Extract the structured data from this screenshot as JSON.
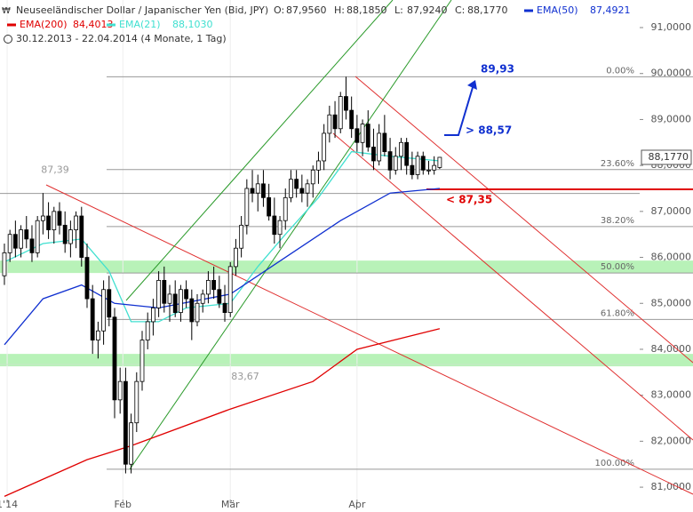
{
  "chart_data": {
    "type": "candlestick",
    "title": "Neuseeländischer Dollar / Japanischer Yen (Bid, JPY)",
    "ohlc": [
      {
        "label": "O:",
        "value": "87,9560"
      },
      {
        "label": "H:",
        "value": "88,1850"
      },
      {
        "label": "L:",
        "value": "87,9240"
      },
      {
        "label": "C:",
        "value": "88,1770"
      }
    ],
    "subtitle": "30.12.2013 - 22.04.2014 (4 Monate, 1 Tag)",
    "ylim": [
      80.46,
      91.6
    ],
    "yticks": [
      {
        "value": 81,
        "label": "81,0000"
      },
      {
        "value": 82,
        "label": "82,0000"
      },
      {
        "value": 83,
        "label": "83,0000"
      },
      {
        "value": 84,
        "label": "84,0000"
      },
      {
        "value": 85,
        "label": "85,0000"
      },
      {
        "value": 86,
        "label": "86,0000"
      },
      {
        "value": 87,
        "label": "87,0000"
      },
      {
        "value": 88,
        "label": "88,0000"
      },
      {
        "value": 89,
        "label": "89,0000"
      },
      {
        "value": 90,
        "label": "90,0000"
      },
      {
        "value": 91,
        "label": "91,0000"
      }
    ],
    "xlim": [
      -0.8,
      115.3
    ],
    "xticks": [
      {
        "value": 0.5,
        "label": "1'14"
      },
      {
        "value": 21.5,
        "label": "Feb"
      },
      {
        "value": 41,
        "label": "Mär"
      },
      {
        "value": 64,
        "label": "Apr"
      }
    ],
    "last_price": {
      "value": 88.177,
      "label": "88,1770"
    },
    "candles": [
      [
        85.6,
        86.3,
        85.4,
        86.1
      ],
      [
        86.1,
        86.6,
        85.9,
        86.5
      ],
      [
        86.5,
        86.8,
        86.0,
        86.2
      ],
      [
        86.2,
        86.7,
        86.0,
        86.6
      ],
      [
        86.6,
        86.9,
        86.2,
        86.4
      ],
      [
        86.4,
        86.7,
        85.9,
        86.1
      ],
      [
        86.1,
        86.9,
        86.0,
        86.8
      ],
      [
        86.8,
        87.4,
        86.5,
        86.9
      ],
      [
        86.9,
        87.2,
        86.4,
        86.6
      ],
      [
        86.6,
        87.1,
        86.3,
        87.0
      ],
      [
        87.0,
        87.2,
        86.5,
        86.7
      ],
      [
        86.7,
        87.0,
        86.1,
        86.3
      ],
      [
        86.3,
        86.8,
        86.0,
        86.6
      ],
      [
        86.6,
        87.0,
        86.2,
        86.9
      ],
      [
        86.9,
        87.1,
        85.8,
        86.0
      ],
      [
        86.0,
        86.3,
        84.9,
        85.1
      ],
      [
        85.1,
        85.4,
        83.9,
        84.2
      ],
      [
        84.2,
        84.6,
        83.8,
        84.4
      ],
      [
        84.4,
        85.5,
        84.1,
        85.3
      ],
      [
        85.3,
        85.6,
        84.5,
        84.7
      ],
      [
        84.7,
        84.9,
        82.5,
        82.9
      ],
      [
        82.9,
        83.6,
        82.6,
        83.3
      ],
      [
        83.3,
        83.6,
        81.3,
        81.5
      ],
      [
        81.5,
        82.6,
        81.3,
        82.4
      ],
      [
        82.4,
        83.5,
        82.2,
        83.3
      ],
      [
        83.3,
        84.4,
        83.1,
        84.2
      ],
      [
        84.2,
        84.8,
        84.0,
        84.6
      ],
      [
        84.6,
        85.1,
        84.3,
        84.9
      ],
      [
        84.9,
        85.7,
        84.7,
        85.5
      ],
      [
        85.5,
        85.8,
        84.8,
        85.0
      ],
      [
        85.0,
        85.4,
        84.6,
        85.2
      ],
      [
        85.2,
        85.5,
        84.7,
        84.8
      ],
      [
        84.8,
        85.4,
        84.6,
        85.3
      ],
      [
        85.3,
        85.5,
        84.9,
        85.1
      ],
      [
        85.1,
        85.3,
        84.2,
        84.6
      ],
      [
        84.6,
        85.2,
        84.5,
        85.0
      ],
      [
        85.0,
        85.3,
        84.8,
        85.2
      ],
      [
        85.2,
        85.7,
        85.0,
        85.5
      ],
      [
        85.5,
        85.8,
        85.1,
        85.3
      ],
      [
        85.3,
        85.6,
        84.9,
        85.0
      ],
      [
        85.0,
        85.4,
        84.6,
        84.8
      ],
      [
        84.8,
        85.9,
        84.7,
        85.8
      ],
      [
        85.8,
        86.4,
        85.6,
        86.2
      ],
      [
        86.2,
        86.9,
        86.0,
        86.7
      ],
      [
        86.7,
        87.7,
        86.5,
        87.5
      ],
      [
        87.5,
        87.9,
        87.2,
        87.4
      ],
      [
        87.4,
        87.8,
        87.0,
        87.6
      ],
      [
        87.6,
        87.9,
        87.1,
        87.3
      ],
      [
        87.3,
        87.6,
        86.8,
        86.9
      ],
      [
        86.9,
        87.3,
        86.3,
        86.5
      ],
      [
        86.5,
        86.9,
        86.2,
        86.8
      ],
      [
        86.8,
        87.5,
        86.6,
        87.3
      ],
      [
        87.3,
        87.9,
        87.2,
        87.7
      ],
      [
        87.7,
        87.9,
        87.3,
        87.5
      ],
      [
        87.5,
        87.8,
        87.2,
        87.4
      ],
      [
        87.4,
        87.7,
        87.1,
        87.6
      ],
      [
        87.6,
        88.0,
        87.3,
        87.9
      ],
      [
        87.9,
        88.3,
        87.6,
        88.1
      ],
      [
        88.1,
        88.9,
        87.9,
        88.7
      ],
      [
        88.7,
        89.3,
        88.5,
        89.1
      ],
      [
        89.1,
        89.4,
        88.6,
        88.8
      ],
      [
        88.8,
        89.6,
        88.7,
        89.5
      ],
      [
        89.5,
        89.93,
        89.0,
        89.2
      ],
      [
        89.2,
        89.5,
        88.6,
        88.8
      ],
      [
        88.8,
        89.1,
        88.3,
        88.5
      ],
      [
        88.5,
        89.0,
        88.2,
        88.9
      ],
      [
        88.9,
        89.2,
        88.3,
        88.4
      ],
      [
        88.4,
        88.8,
        87.9,
        88.1
      ],
      [
        88.1,
        88.9,
        88.0,
        88.7
      ],
      [
        88.7,
        89.1,
        88.2,
        88.3
      ],
      [
        88.3,
        88.6,
        87.7,
        87.9
      ],
      [
        87.9,
        88.4,
        87.8,
        88.2
      ],
      [
        88.2,
        88.6,
        87.9,
        88.5
      ],
      [
        88.5,
        88.6,
        87.8,
        88.0
      ],
      [
        88.0,
        88.3,
        87.7,
        87.8
      ],
      [
        87.8,
        88.3,
        87.7,
        88.2
      ],
      [
        88.2,
        88.3,
        87.8,
        87.9
      ],
      [
        87.9,
        88.1,
        87.8,
        87.9
      ],
      [
        87.9,
        88.2,
        87.8,
        88.0
      ],
      [
        87.956,
        88.185,
        87.924,
        88.177
      ]
    ],
    "series": [
      {
        "name": "EMA(200)",
        "value_label": "84,4013",
        "color": "#e00000",
        "x": [
          0,
          15,
          23,
          41,
          56,
          64,
          79
        ],
        "values": [
          80.8,
          81.6,
          81.9,
          82.7,
          83.3,
          84.0,
          84.45
        ]
      },
      {
        "name": "EMA(21)",
        "value_label": "88,1030",
        "color": "#40e0d0",
        "x": [
          0,
          7,
          14,
          19,
          23,
          28,
          33,
          41,
          46,
          51,
          57,
          63,
          70,
          79
        ],
        "values": [
          85.9,
          86.3,
          86.4,
          85.7,
          84.6,
          84.6,
          84.9,
          85.0,
          85.8,
          86.5,
          87.3,
          88.3,
          88.2,
          88.1
        ]
      },
      {
        "name": "EMA(50)",
        "value_label": "87,4921",
        "color": "#1030d0",
        "x": [
          0,
          7,
          14,
          20,
          28,
          41,
          51,
          61,
          70,
          79
        ],
        "values": [
          84.1,
          85.1,
          85.4,
          85.0,
          84.9,
          85.2,
          86.0,
          86.8,
          87.4,
          87.5
        ]
      }
    ],
    "fib_levels": [
      {
        "label": "0.00%",
        "value": 89.93
      },
      {
        "label": "23.60%",
        "value": 87.91
      },
      {
        "label": "38.20%",
        "value": 86.67
      },
      {
        "label": "50.00%",
        "value": 85.66
      },
      {
        "label": "61.80%",
        "value": 84.65
      },
      {
        "label": "100.00%",
        "value": 81.39
      }
    ],
    "zones": [
      [
        85.66,
        85.93
      ],
      [
        83.63,
        83.9
      ]
    ],
    "levels": [
      {
        "label": "87,39",
        "value": 87.39
      },
      {
        "label": "83,67",
        "value": 83.67
      }
    ],
    "annotations": [
      "89,93",
      "> 88,57",
      "< 87,35"
    ]
  }
}
